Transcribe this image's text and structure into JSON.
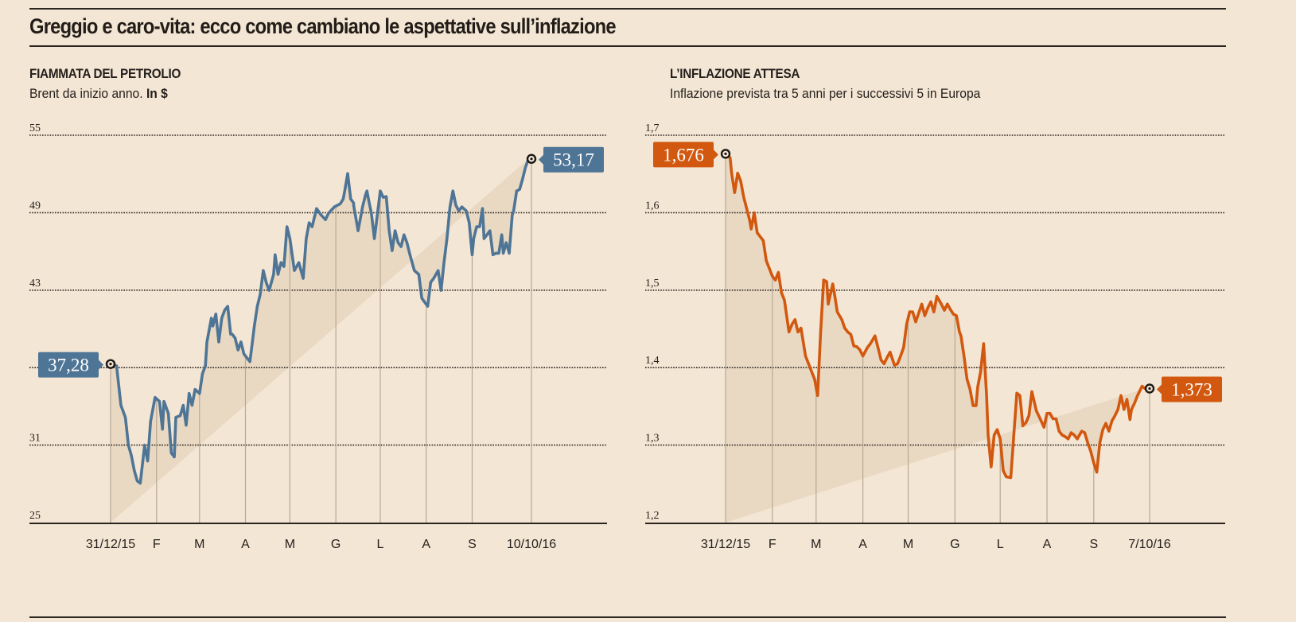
{
  "header": {
    "title": "Greggio e caro-vita: ecco come cambiano le aspettative sull’inflazione"
  },
  "panels": [
    {
      "title": "FIAMMATA DEL PETROLIO",
      "subtitle_plain": "Brent da inizio anno. ",
      "subtitle_bold": "In $"
    },
    {
      "title": "L’INFLAZIONE ATTESA",
      "subtitle_plain": "Inflazione prevista tra 5 anni per i successivi 5 in Europa",
      "subtitle_bold": ""
    }
  ],
  "chart_data": [
    {
      "type": "area",
      "title": "FIAMMATA DEL PETROLIO",
      "subtitle": "Brent da inizio anno. In $",
      "xlabel": "",
      "ylabel": "",
      "series_name": "Brent",
      "color": "#4f7596",
      "fill_color": "#e9d9c3",
      "ylim": [
        25,
        55
      ],
      "yticks": [
        55,
        49,
        43,
        37,
        31,
        25
      ],
      "ytick_labels": [
        "55",
        "49",
        "43",
        "",
        "31",
        "25"
      ],
      "grid": true,
      "x_range_days": [
        0,
        284
      ],
      "xticks": [
        {
          "day": 0,
          "label": "31/12/15"
        },
        {
          "day": 31,
          "label": "F"
        },
        {
          "day": 60,
          "label": "M"
        },
        {
          "day": 91,
          "label": "A"
        },
        {
          "day": 121,
          "label": "M"
        },
        {
          "day": 152,
          "label": "G"
        },
        {
          "day": 182,
          "label": "L"
        },
        {
          "day": 213,
          "label": "A"
        },
        {
          "day": 244,
          "label": "S"
        },
        {
          "day": 284,
          "label": "10/10/16"
        }
      ],
      "start": {
        "day": 0,
        "value": 37.28,
        "label": "37,28"
      },
      "end": {
        "day": 284,
        "value": 53.17,
        "label": "53,17"
      },
      "points_day": [
        0,
        4,
        7,
        10,
        12,
        14,
        16,
        18,
        20,
        23,
        25,
        27,
        30,
        33,
        35,
        36,
        39,
        41,
        43,
        44,
        47,
        49,
        51,
        53,
        55,
        57,
        60,
        62,
        64,
        65,
        68,
        69,
        71,
        73,
        75,
        77,
        79,
        81,
        82,
        84,
        86,
        88,
        90,
        94,
        95,
        97,
        99,
        101,
        103,
        105,
        107,
        110,
        111,
        113,
        115,
        117,
        119,
        121,
        124,
        127,
        130,
        132,
        134,
        136,
        139,
        142,
        145,
        147,
        151,
        155,
        157,
        158,
        160,
        162,
        164,
        164,
        167,
        170,
        172,
        173,
        174,
        176,
        178,
        182,
        184,
        186,
        188,
        190,
        192,
        194,
        196,
        198,
        200,
        202,
        205,
        208,
        210,
        212,
        214,
        216,
        218,
        221,
        223,
        225,
        227,
        229,
        231,
        233,
        235,
        237,
        240,
        242,
        244,
        245,
        247,
        249,
        251,
        252,
        254,
        256,
        258,
        260,
        262,
        264,
        265,
        267,
        269,
        271,
        272,
        274,
        276,
        278,
        280,
        282,
        284
      ],
      "values": [
        37.28,
        37.15,
        34.08,
        33.15,
        31.0,
        30.2,
        29.03,
        28.23,
        28.05,
        31.0,
        29.77,
        32.85,
        34.69,
        34.38,
        32.23,
        34.38,
        33.46,
        30.38,
        30.08,
        33.15,
        33.28,
        34.08,
        32.54,
        35.0,
        34.08,
        35.31,
        35.0,
        36.54,
        37.15,
        38.99,
        40.83,
        40.22,
        41.15,
        38.99,
        40.83,
        41.45,
        41.75,
        39.6,
        39.6,
        39.29,
        38.37,
        38.99,
        38.06,
        37.46,
        38.37,
        40.22,
        41.75,
        42.68,
        44.52,
        43.6,
        42.98,
        44.22,
        45.74,
        44.22,
        45.14,
        44.83,
        47.91,
        46.99,
        44.52,
        45.14,
        43.91,
        46.99,
        48.22,
        47.91,
        49.32,
        48.83,
        48.46,
        48.95,
        49.45,
        49.69,
        50.06,
        50.68,
        52.03,
        50.06,
        49.75,
        49.57,
        47.6,
        49.45,
        50.37,
        50.68,
        50.06,
        48.95,
        46.99,
        50.68,
        50.19,
        50.25,
        47.6,
        46.06,
        47.6,
        46.68,
        46.37,
        47.29,
        46.68,
        45.74,
        44.52,
        44.22,
        42.38,
        42.06,
        41.75,
        43.6,
        43.91,
        44.52,
        42.98,
        45.14,
        46.99,
        49.45,
        50.68,
        49.57,
        49.14,
        49.45,
        49.14,
        48.22,
        45.74,
        46.99,
        47.91,
        47.91,
        49.32,
        46.99,
        47.29,
        47.6,
        45.74,
        45.86,
        45.86,
        47.29,
        45.86,
        46.68,
        45.86,
        48.8,
        49.14,
        50.68,
        50.8,
        51.6,
        52.52,
        53.17
      ]
    },
    {
      "type": "area",
      "title": "L’INFLAZIONE ATTESA",
      "subtitle": "Inflazione prevista tra 5 anni per i successivi 5 in Europa",
      "xlabel": "",
      "ylabel": "",
      "series_name": "Inflazione attesa 5y5y Europa",
      "color": "#d2580f",
      "fill_color": "#e9d9c3",
      "ylim": [
        1.2,
        1.7
      ],
      "yticks": [
        1.7,
        1.6,
        1.5,
        1.4,
        1.3,
        1.2
      ],
      "ytick_labels": [
        "1,7",
        "1,6",
        "1,5",
        "1,4",
        "1,3",
        "1,2"
      ],
      "grid": true,
      "x_range_days": [
        0,
        281
      ],
      "xticks": [
        {
          "day": 0,
          "label": "31/12/15"
        },
        {
          "day": 31,
          "label": "F"
        },
        {
          "day": 60,
          "label": "M"
        },
        {
          "day": 91,
          "label": "A"
        },
        {
          "day": 121,
          "label": "M"
        },
        {
          "day": 152,
          "label": "G"
        },
        {
          "day": 182,
          "label": "L"
        },
        {
          "day": 213,
          "label": "A"
        },
        {
          "day": 244,
          "label": "S"
        },
        {
          "day": 281,
          "label": "7/10/16"
        }
      ],
      "start": {
        "day": 0,
        "value": 1.676,
        "label": "1,676"
      },
      "end": {
        "day": 281,
        "value": 1.373,
        "label": "1,373"
      },
      "points_day": [
        0,
        3,
        4,
        6,
        8,
        10,
        12,
        14,
        16,
        17,
        19,
        21,
        23,
        25,
        27,
        29,
        31,
        33,
        35,
        37,
        39,
        42,
        44,
        46,
        48,
        50,
        53,
        55,
        57,
        59,
        61,
        63,
        65,
        67,
        68,
        71,
        72,
        74,
        77,
        79,
        81,
        83,
        85,
        87,
        89,
        91,
        94,
        96,
        99,
        101,
        103,
        105,
        107,
        109,
        112,
        114,
        116,
        118,
        120,
        122,
        124,
        126,
        130,
        132,
        134,
        136,
        138,
        140,
        143,
        145,
        147,
        149,
        151,
        153,
        155,
        156,
        158,
        160,
        162,
        164,
        166,
        167,
        169,
        171,
        173,
        174,
        176,
        178,
        180,
        182,
        184,
        186,
        189,
        191,
        193,
        195,
        197,
        199,
        201,
        203,
        206,
        208,
        211,
        213,
        215,
        217,
        219,
        221,
        223,
        225,
        227,
        229,
        231,
        233,
        236,
        238,
        240,
        242,
        244,
        246,
        248,
        250,
        252,
        254,
        256,
        258,
        260,
        262,
        264,
        266,
        268,
        269,
        271,
        273,
        276,
        278,
        280,
        281
      ],
      "values": [
        1.676,
        1.671,
        1.651,
        1.626,
        1.651,
        1.641,
        1.62,
        1.605,
        1.59,
        1.579,
        1.6,
        1.574,
        1.569,
        1.564,
        1.538,
        1.528,
        1.518,
        1.513,
        1.523,
        1.497,
        1.487,
        1.446,
        1.456,
        1.462,
        1.446,
        1.451,
        1.415,
        1.405,
        1.395,
        1.385,
        1.364,
        1.446,
        1.513,
        1.511,
        1.482,
        1.508,
        1.497,
        1.472,
        1.462,
        1.451,
        1.446,
        1.443,
        1.428,
        1.427,
        1.423,
        1.415,
        1.426,
        1.431,
        1.441,
        1.426,
        1.41,
        1.405,
        1.413,
        1.42,
        1.403,
        1.405,
        1.415,
        1.426,
        1.456,
        1.472,
        1.472,
        1.459,
        1.482,
        1.467,
        1.477,
        1.485,
        1.472,
        1.492,
        1.482,
        1.474,
        1.482,
        1.475,
        1.469,
        1.467,
        1.446,
        1.441,
        1.415,
        1.385,
        1.372,
        1.351,
        1.351,
        1.374,
        1.395,
        1.431,
        1.364,
        1.313,
        1.272,
        1.313,
        1.32,
        1.308,
        1.267,
        1.259,
        1.258,
        1.313,
        1.367,
        1.364,
        1.325,
        1.329,
        1.338,
        1.369,
        1.344,
        1.336,
        1.323,
        1.341,
        1.341,
        1.334,
        1.334,
        1.318,
        1.313,
        1.311,
        1.308,
        1.316,
        1.313,
        1.308,
        1.318,
        1.316,
        1.303,
        1.292,
        1.277,
        1.265,
        1.303,
        1.32,
        1.328,
        1.318,
        1.331,
        1.338,
        1.346,
        1.364,
        1.346,
        1.359,
        1.333,
        1.346,
        1.354,
        1.364,
        1.376,
        1.373
      ]
    }
  ]
}
